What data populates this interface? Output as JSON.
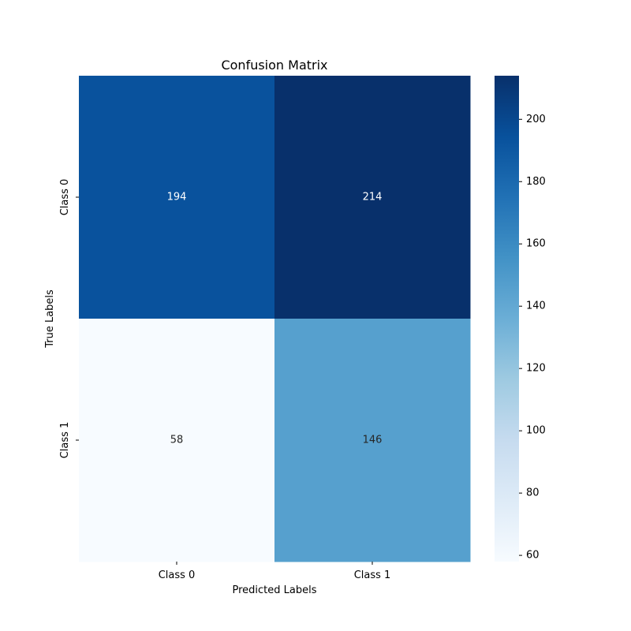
{
  "chart_data": {
    "type": "heatmap",
    "title": "Confusion Matrix",
    "xlabel": "Predicted Labels",
    "ylabel": "True Labels",
    "x_categories": [
      "Class 0",
      "Class 1"
    ],
    "y_categories": [
      "Class 0",
      "Class 1"
    ],
    "values": [
      [
        194,
        214
      ],
      [
        58,
        146
      ]
    ],
    "colormap": "Blues",
    "colorbar": {
      "range": [
        58,
        214
      ],
      "ticks": [
        60,
        80,
        100,
        120,
        140,
        160,
        180,
        200
      ]
    },
    "annotations": true,
    "annotation_colors": {
      "light": "#ffffff",
      "dark": "#262626"
    }
  }
}
